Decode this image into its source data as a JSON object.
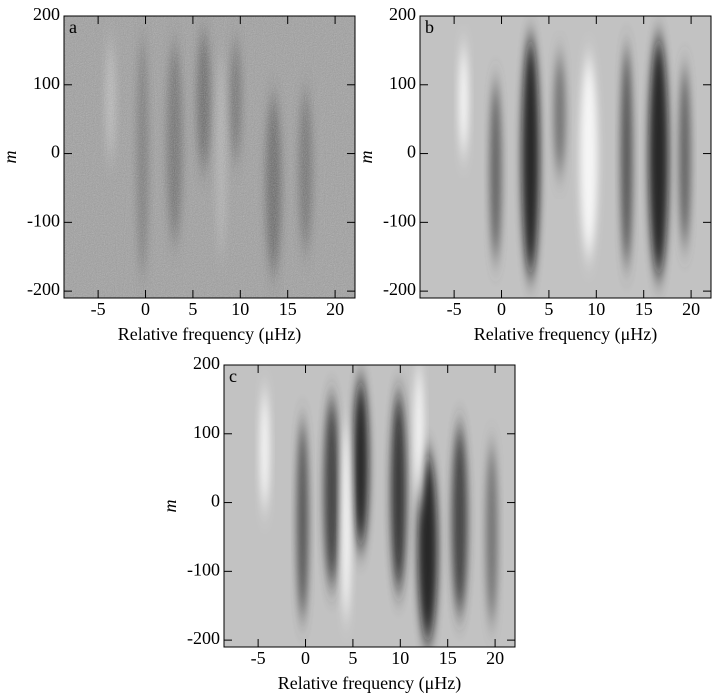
{
  "chart_data": [
    {
      "type": "heatmap",
      "panel_label": "a",
      "x_label": "Relative frequency (μHz)",
      "y_label": "m",
      "xlim": [
        -8.6,
        22.1
      ],
      "ylim": [
        -210,
        200
      ],
      "xticks": [
        -5,
        0,
        5,
        10,
        15,
        20
      ],
      "yticks": [
        -200,
        -100,
        0,
        100,
        200
      ]
    },
    {
      "type": "heatmap",
      "panel_label": "b",
      "x_label": "Relative frequency (μHz)",
      "y_label": "m",
      "xlim": [
        -8.6,
        22.1
      ],
      "ylim": [
        -210,
        200
      ],
      "xticks": [
        -5,
        0,
        5,
        10,
        15,
        20
      ],
      "yticks": [
        -200,
        -100,
        0,
        100,
        200
      ]
    },
    {
      "type": "heatmap",
      "panel_label": "c",
      "x_label": "Relative frequency (μHz)",
      "y_label": "m",
      "xlim": [
        -8.6,
        22.1
      ],
      "ylim": [
        -210,
        200
      ],
      "xticks": [
        -5,
        0,
        5,
        10,
        15,
        20
      ],
      "yticks": [
        -200,
        -100,
        0,
        100,
        200
      ]
    }
  ]
}
